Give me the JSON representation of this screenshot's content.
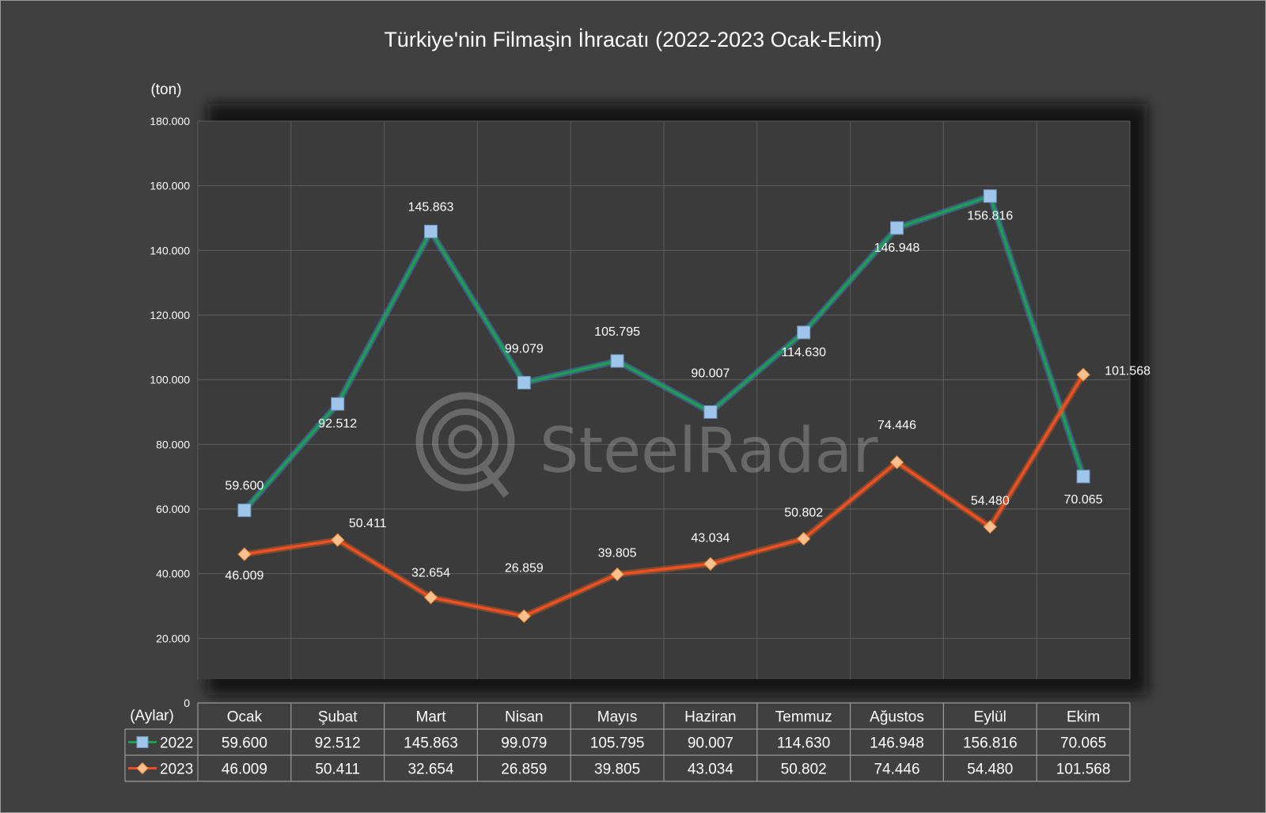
{
  "chart_data": {
    "type": "line",
    "title": "Türkiye'nin Filmaşin İhracatı (2022-2023 Ocak-Ekim)",
    "ylabel": "(ton)",
    "xlabel": "(Aylar)",
    "categories": [
      "Ocak",
      "Şubat",
      "Mart",
      "Nisan",
      "Mayıs",
      "Haziran",
      "Temmuz",
      "Ağustos",
      "Eylül",
      "Ekim"
    ],
    "series": [
      {
        "name": "2022",
        "color": "#1aa053",
        "marker": "square",
        "marker_color": "#9ec5ea",
        "values": [
          59600,
          92512,
          145863,
          99079,
          105795,
          90007,
          114630,
          146948,
          156816,
          70065
        ],
        "labels": [
          "59.600",
          "92.512",
          "145.863",
          "99.079",
          "105.795",
          "90.007",
          "114.630",
          "146.948",
          "156.816",
          "70.065"
        ]
      },
      {
        "name": "2023",
        "color": "#f04e23",
        "marker": "diamond",
        "marker_color": "#f8c08e",
        "values": [
          46009,
          50411,
          32654,
          26859,
          39805,
          43034,
          50802,
          74446,
          54480,
          101568
        ],
        "labels": [
          "46.009",
          "50.411",
          "32.654",
          "26.859",
          "39.805",
          "43.034",
          "50.802",
          "74.446",
          "54.480",
          "101.568"
        ]
      }
    ],
    "ylim": [
      0,
      180000
    ],
    "yticks": [
      0,
      20000,
      40000,
      60000,
      80000,
      100000,
      120000,
      140000,
      160000,
      180000
    ],
    "ytick_labels": [
      "0",
      "20.000",
      "40.000",
      "60.000",
      "80.000",
      "100.000",
      "120.000",
      "140.000",
      "160.000",
      "180.000"
    ],
    "grid": true,
    "legend": "data-table",
    "watermark": "SteelRadar"
  }
}
